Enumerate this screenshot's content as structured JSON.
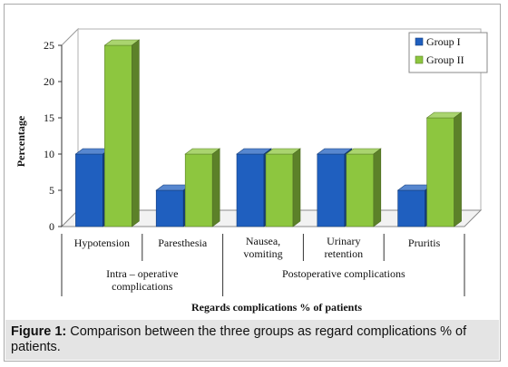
{
  "chart_data": {
    "type": "bar",
    "ylabel": "Percentage",
    "xlabel": "Regards complications % of patients",
    "ylim": [
      0,
      25
    ],
    "yticks": [
      0,
      5,
      10,
      15,
      20,
      25
    ],
    "categories": [
      "Hypotension",
      "Paresthesia",
      "Nausea, vomiting",
      "Urinary retention",
      "Pruritis"
    ],
    "category_label_lines": [
      [
        "Hypotension"
      ],
      [
        "Paresthesia"
      ],
      [
        "Nausea,",
        "vomiting"
      ],
      [
        "Urinary",
        "retention"
      ],
      [
        "Pruritis"
      ]
    ],
    "groups": [
      {
        "label_lines": [
          "Intra – operative",
          "complications"
        ],
        "categories": [
          0,
          1
        ]
      },
      {
        "label_lines": [
          "Postoperative complications"
        ],
        "categories": [
          2,
          3,
          4
        ]
      }
    ],
    "series": [
      {
        "name": "Group I",
        "values": [
          10,
          5,
          10,
          10,
          5
        ],
        "color": "#1f5fbf"
      },
      {
        "name": "Group II",
        "values": [
          25,
          10,
          10,
          10,
          15
        ],
        "color": "#8dc63f"
      }
    ],
    "legend_position": "top-right",
    "grid": false,
    "style": "3d"
  },
  "caption": {
    "label": "Figure 1:",
    "text": " Comparison between the three groups as regard complications % of patients."
  }
}
